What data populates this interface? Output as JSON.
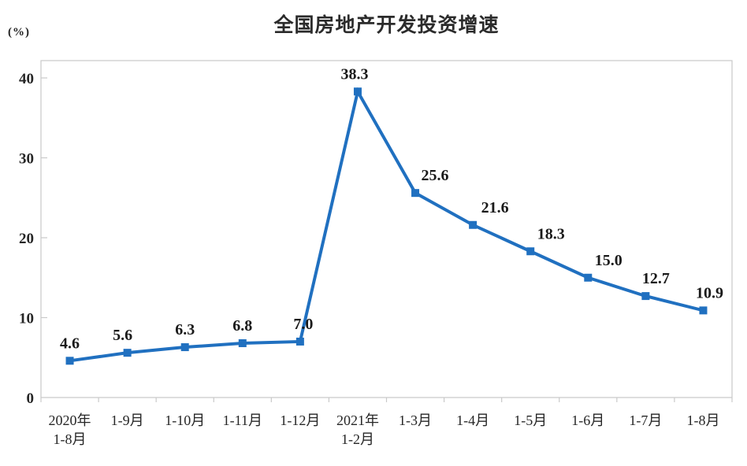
{
  "chart_data": {
    "type": "line",
    "title": "全国房地产开发投资增速",
    "unit_label": "(%)",
    "series_name": "全国房地产开发投资增速",
    "categories": [
      "2020年\n1-8月",
      "1-9月",
      "1-10月",
      "1-11月",
      "1-12月",
      "2021年\n1-2月",
      "1-3月",
      "1-4月",
      "1-5月",
      "1-6月",
      "1-7月",
      "1-8月"
    ],
    "values": [
      4.6,
      5.6,
      6.3,
      6.8,
      7.0,
      38.3,
      25.6,
      21.6,
      18.3,
      15.0,
      12.7,
      10.9
    ],
    "value_labels": [
      "4.6",
      "5.6",
      "6.3",
      "6.8",
      "7.0",
      "38.3",
      "25.6",
      "21.6",
      "18.3",
      "15.0",
      "12.7",
      "10.9"
    ],
    "y_ticks": [
      0,
      10,
      20,
      30,
      40
    ],
    "ylim": [
      0,
      42
    ],
    "grid": false,
    "legend": "none",
    "colors": {
      "line": "#2070c0",
      "marker": "#2070c0",
      "axis": "#c9c9c9",
      "value_label_text": "#1a1a1a",
      "tick_label_text": "#262626",
      "title_text": "#2b2b2b"
    }
  }
}
